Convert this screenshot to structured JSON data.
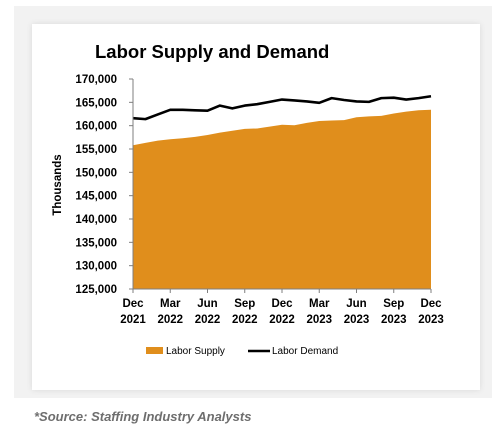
{
  "chart_data": {
    "type": "area",
    "title": "Labor Supply and Demand",
    "ylabel": "Thousands",
    "xlabel": "",
    "ylim": [
      125000,
      170000
    ],
    "y_ticks": [
      "170,000",
      "165,000",
      "160,000",
      "155,000",
      "150,000",
      "145,000",
      "140,000",
      "135,000",
      "130,000",
      "125,000"
    ],
    "y_tick_values": [
      170000,
      165000,
      160000,
      155000,
      150000,
      145000,
      140000,
      135000,
      130000,
      125000
    ],
    "x_ticks": [
      {
        "month": "Dec",
        "year": "2021",
        "index": 0
      },
      {
        "month": "Mar",
        "year": "2022",
        "index": 3
      },
      {
        "month": "Jun",
        "year": "2022",
        "index": 6
      },
      {
        "month": "Sep",
        "year": "2022",
        "index": 9
      },
      {
        "month": "Dec",
        "year": "2022",
        "index": 12
      },
      {
        "month": "Mar",
        "year": "2023",
        "index": 15
      },
      {
        "month": "Jun",
        "year": "2023",
        "index": 18
      },
      {
        "month": "Sep",
        "year": "2023",
        "index": 21
      },
      {
        "month": "Dec",
        "year": "2023",
        "index": 24
      }
    ],
    "series": [
      {
        "name": "Labor Supply",
        "kind": "area",
        "color": "#e08e1c",
        "values": [
          155800,
          156300,
          156800,
          157100,
          157300,
          157600,
          158000,
          158500,
          158900,
          159300,
          159400,
          159800,
          160200,
          160100,
          160600,
          161000,
          161100,
          161200,
          161800,
          162000,
          162100,
          162600,
          163000,
          163300,
          163400
        ]
      },
      {
        "name": "Labor Demand",
        "kind": "line",
        "color": "#000000",
        "values": [
          161600,
          161400,
          162400,
          163400,
          163400,
          163300,
          163200,
          164300,
          163700,
          164300,
          164600,
          165100,
          165600,
          165400,
          165200,
          164900,
          165900,
          165500,
          165200,
          165100,
          165900,
          166000,
          165600,
          165900,
          166300
        ]
      }
    ],
    "legend": {
      "placement": "bottom",
      "supply_label": "Labor Supply",
      "demand_label": "Labor Demand"
    }
  },
  "source_note": "*Source: Staffing Industry Analysts"
}
